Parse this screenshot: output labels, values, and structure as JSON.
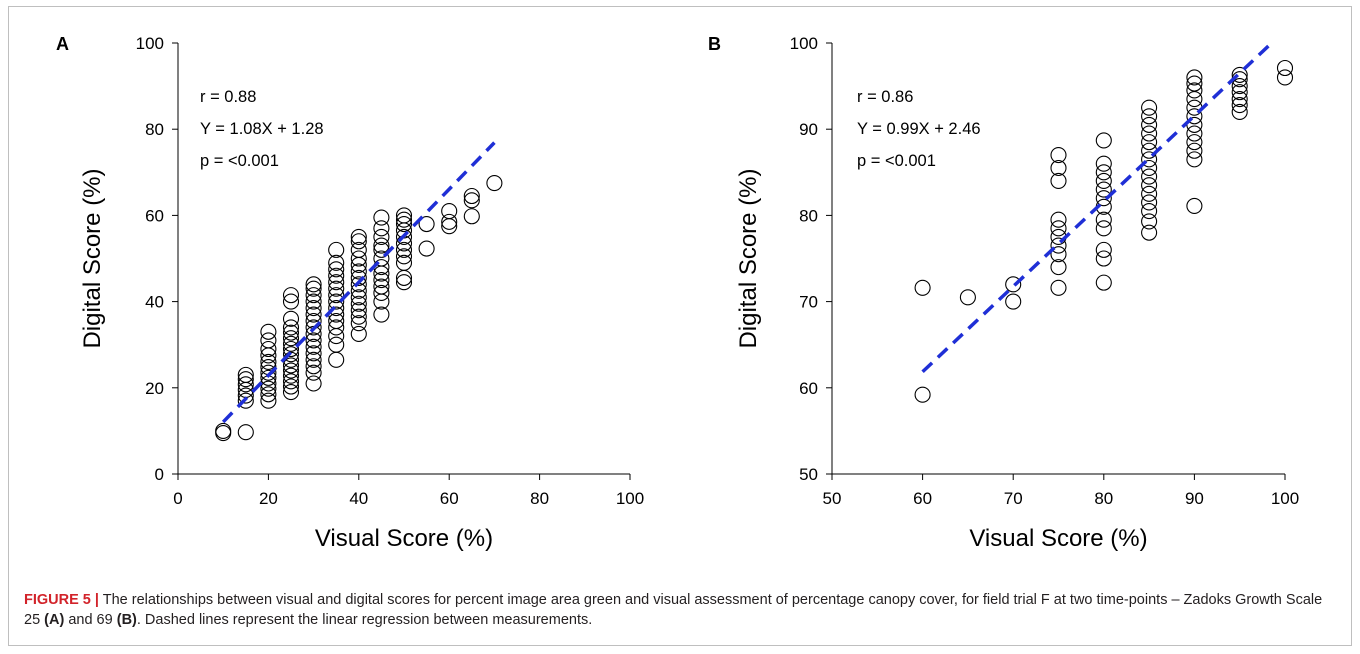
{
  "chart_data": [
    {
      "type": "scatter",
      "panel_label": "A",
      "xlabel": "Visual Score (%)",
      "ylabel": "Digital Score (%)",
      "xlim": [
        0,
        100
      ],
      "ylim": [
        0,
        100
      ],
      "xticks": [
        0,
        20,
        40,
        60,
        80,
        100
      ],
      "yticks": [
        0,
        20,
        40,
        60,
        80,
        100
      ],
      "grid": false,
      "annotations": [
        "r = 0.88",
        "Y = 1.08X + 1.28",
        "p = <0.001"
      ],
      "regression": {
        "slope": 1.08,
        "intercept": 1.28,
        "x_range": [
          10,
          70
        ],
        "style": "dashed",
        "color": "#1f2fd6"
      },
      "points": [
        [
          10,
          9.5
        ],
        [
          10,
          10
        ],
        [
          15,
          9.7
        ],
        [
          15,
          17
        ],
        [
          15,
          18.2
        ],
        [
          15,
          19.5
        ],
        [
          15,
          20.8
        ],
        [
          15,
          22
        ],
        [
          15,
          23
        ],
        [
          20,
          17
        ],
        [
          20,
          18.5
        ],
        [
          20,
          19.8
        ],
        [
          20,
          21
        ],
        [
          20,
          22.3
        ],
        [
          20,
          23.5
        ],
        [
          20,
          24.8
        ],
        [
          20,
          26
        ],
        [
          20,
          27.5
        ],
        [
          20,
          29
        ],
        [
          20,
          31
        ],
        [
          20,
          33
        ],
        [
          25,
          19
        ],
        [
          25,
          20.3
        ],
        [
          25,
          21.5
        ],
        [
          25,
          22.8
        ],
        [
          25,
          24
        ],
        [
          25,
          25.2
        ],
        [
          25,
          26.5
        ],
        [
          25,
          27.8
        ],
        [
          25,
          29
        ],
        [
          25,
          30.2
        ],
        [
          25,
          31.5
        ],
        [
          25,
          32.8
        ],
        [
          25,
          34
        ],
        [
          25,
          36
        ],
        [
          25,
          40
        ],
        [
          25,
          41.5
        ],
        [
          30,
          21
        ],
        [
          30,
          23.5
        ],
        [
          30,
          25
        ],
        [
          30,
          26.5
        ],
        [
          30,
          28
        ],
        [
          30,
          29.5
        ],
        [
          30,
          31
        ],
        [
          30,
          32.5
        ],
        [
          30,
          34
        ],
        [
          30,
          35.5
        ],
        [
          30,
          37
        ],
        [
          30,
          38.5
        ],
        [
          30,
          40
        ],
        [
          30,
          41.5
        ],
        [
          30,
          43
        ],
        [
          30,
          44
        ],
        [
          35,
          26.5
        ],
        [
          35,
          30
        ],
        [
          35,
          32
        ],
        [
          35,
          34
        ],
        [
          35,
          35.5
        ],
        [
          35,
          37
        ],
        [
          35,
          38.5
        ],
        [
          35,
          40
        ],
        [
          35,
          41.5
        ],
        [
          35,
          43
        ],
        [
          35,
          44.5
        ],
        [
          35,
          46
        ],
        [
          35,
          47.5
        ],
        [
          35,
          49
        ],
        [
          35,
          52
        ],
        [
          40,
          32.5
        ],
        [
          40,
          35
        ],
        [
          40,
          36.5
        ],
        [
          40,
          38
        ],
        [
          40,
          39.5
        ],
        [
          40,
          41
        ],
        [
          40,
          42.5
        ],
        [
          40,
          44
        ],
        [
          40,
          45.5
        ],
        [
          40,
          47
        ],
        [
          40,
          48.5
        ],
        [
          40,
          50
        ],
        [
          40,
          52
        ],
        [
          40,
          54
        ],
        [
          40,
          55
        ],
        [
          45,
          37
        ],
        [
          45,
          40
        ],
        [
          45,
          42
        ],
        [
          45,
          43.5
        ],
        [
          45,
          45
        ],
        [
          45,
          46.5
        ],
        [
          45,
          48
        ],
        [
          45,
          50
        ],
        [
          45,
          52
        ],
        [
          45,
          53
        ],
        [
          45,
          55
        ],
        [
          45,
          57
        ],
        [
          45,
          59.5
        ],
        [
          50,
          44.5
        ],
        [
          50,
          45.5
        ],
        [
          50,
          49
        ],
        [
          50,
          50.5
        ],
        [
          50,
          52
        ],
        [
          50,
          53.5
        ],
        [
          50,
          55
        ],
        [
          50,
          56.5
        ],
        [
          50,
          58
        ],
        [
          50,
          59
        ],
        [
          50,
          60
        ],
        [
          55,
          52.3
        ],
        [
          55,
          58
        ],
        [
          60,
          57.5
        ],
        [
          60,
          58.5
        ],
        [
          60,
          61
        ],
        [
          65,
          59.8
        ],
        [
          65,
          63.5
        ],
        [
          65,
          64.5
        ],
        [
          70,
          67.5
        ]
      ]
    },
    {
      "type": "scatter",
      "panel_label": "B",
      "xlabel": "Visual Score (%)",
      "ylabel": "Digital Score (%)",
      "xlim": [
        50,
        100
      ],
      "ylim": [
        50,
        100
      ],
      "xticks": [
        50,
        60,
        70,
        80,
        90,
        100
      ],
      "yticks": [
        50,
        60,
        70,
        80,
        90,
        100
      ],
      "grid": false,
      "annotations": [
        "r = 0.86",
        "Y = 0.99X + 2.46",
        "p = <0.001"
      ],
      "regression": {
        "slope": 0.99,
        "intercept": 2.46,
        "x_range": [
          60,
          98.5
        ],
        "style": "dashed",
        "color": "#1f2fd6"
      },
      "points": [
        [
          60,
          59.2
        ],
        [
          60,
          71.6
        ],
        [
          65,
          70.5
        ],
        [
          70,
          70
        ],
        [
          70,
          72
        ],
        [
          75,
          71.6
        ],
        [
          75,
          74
        ],
        [
          75,
          75.5
        ],
        [
          75,
          76.5
        ],
        [
          75,
          77.5
        ],
        [
          75,
          78.5
        ],
        [
          75,
          79.5
        ],
        [
          75,
          84
        ],
        [
          75,
          85.5
        ],
        [
          75,
          87
        ],
        [
          80,
          72.2
        ],
        [
          80,
          75
        ],
        [
          80,
          76
        ],
        [
          80,
          78.5
        ],
        [
          80,
          79.5
        ],
        [
          80,
          81
        ],
        [
          80,
          82
        ],
        [
          80,
          83
        ],
        [
          80,
          84
        ],
        [
          80,
          85
        ],
        [
          80,
          86
        ],
        [
          80,
          88.7
        ],
        [
          85,
          78
        ],
        [
          85,
          79.3
        ],
        [
          85,
          80.5
        ],
        [
          85,
          81.5
        ],
        [
          85,
          82.5
        ],
        [
          85,
          83.5
        ],
        [
          85,
          84.5
        ],
        [
          85,
          85.5
        ],
        [
          85,
          86.5
        ],
        [
          85,
          87.5
        ],
        [
          85,
          88.5
        ],
        [
          85,
          89.5
        ],
        [
          85,
          90.5
        ],
        [
          85,
          91.5
        ],
        [
          85,
          92.5
        ],
        [
          90,
          81.1
        ],
        [
          90,
          86.5
        ],
        [
          90,
          87.5
        ],
        [
          90,
          88.5
        ],
        [
          90,
          89.5
        ],
        [
          90,
          90.5
        ],
        [
          90,
          91.5
        ],
        [
          90,
          92.5
        ],
        [
          90,
          93.5
        ],
        [
          90,
          94.5
        ],
        [
          90,
          95.3
        ],
        [
          90,
          96
        ],
        [
          95,
          92
        ],
        [
          95,
          92.8
        ],
        [
          95,
          93.5
        ],
        [
          95,
          94.3
        ],
        [
          95,
          95
        ],
        [
          95,
          95.8
        ],
        [
          95,
          96.3
        ],
        [
          100,
          96
        ],
        [
          100,
          97.1
        ]
      ]
    }
  ],
  "caption": {
    "figure_label": "FIGURE 5 |",
    "text_1": " The relationships between visual and digital scores for percent image area green and visual assessment of percentage canopy cover, for field trial F at two time-points – Zadoks Growth Scale 25 ",
    "ref_a": "(A)",
    "text_2": " and 69 ",
    "ref_b": "(B)",
    "text_3": ". Dashed lines represent the linear regression between measurements."
  }
}
